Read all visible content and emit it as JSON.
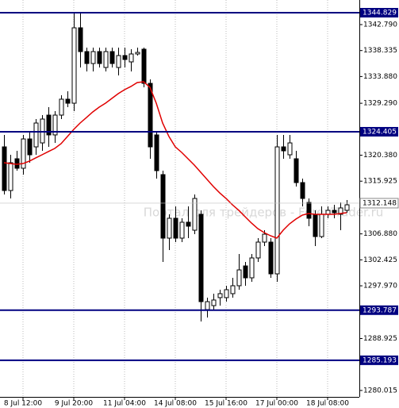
{
  "chart_data": {
    "type": "candlestick",
    "watermark": "Портал для трейдеров - ForexTrader.ru",
    "categories": [
      null,
      null,
      null,
      "8 Jul 12:00",
      null,
      null,
      null,
      null,
      null,
      null,
      null,
      "9 Jul 20:00",
      null,
      null,
      null,
      null,
      null,
      null,
      null,
      "11 Jul 04:00",
      null,
      null,
      null,
      null,
      null,
      null,
      null,
      "14 Jul 08:00",
      null,
      null,
      null,
      null,
      null,
      null,
      null,
      "15 Jul 16:00",
      null,
      null,
      null,
      null,
      null,
      null,
      null,
      "17 Jul 00:00",
      null,
      null,
      null,
      null,
      null,
      null,
      null,
      "18 Jul 08:00",
      null,
      null,
      null
    ],
    "open": [
      1321.81,
      1314.32,
      1319.77,
      1318.14,
      1323.17,
      1321.81,
      1322.49,
      1327.26,
      1323.86,
      1327.26,
      1329.99,
      1329.3,
      1342.24,
      1338.16,
      1336.11,
      1338.16,
      1335.43,
      1338.16,
      1335.43,
      1337.48,
      1336.39,
      1337.75,
      1338.57,
      1332.71,
      1323.86,
      1317.05,
      1306.15,
      1309.56,
      1306.15,
      1308.88,
      1307.51,
      1310.24,
      1293.89,
      1294.57,
      1295.94,
      1295.94,
      1296.62,
      1297.98,
      1301.38,
      1299.34,
      1302.75,
      1305.47,
      1305.47,
      1300.02,
      1321.81,
      1320.45,
      1319.77,
      1315.68,
      1312.28,
      1310.24,
      1306.42,
      1310.24,
      1310.92,
      1310.24,
      1310.92
    ],
    "high": [
      1323.86,
      1320.45,
      1321.13,
      1323.86,
      1324.54,
      1326.58,
      1327.26,
      1328.62,
      1327.94,
      1330.67,
      1331.35,
      1344.97,
      1344.97,
      1338.84,
      1338.84,
      1338.84,
      1338.84,
      1338.84,
      1338.84,
      1338.84,
      1338.57,
      1338.84,
      1338.84,
      1333.39,
      1324.54,
      1317.73,
      1310.24,
      1311.6,
      1309.56,
      1311.6,
      1313.64,
      1310.92,
      1295.94,
      1296.62,
      1297.3,
      1297.98,
      1299.34,
      1303.43,
      1302.06,
      1303.43,
      1306.15,
      1307.51,
      1306.15,
      1323.86,
      1323.86,
      1323.86,
      1321.13,
      1316.37,
      1312.96,
      1310.92,
      1311.6,
      1311.6,
      1311.87,
      1312.28,
      1312.69
    ],
    "low": [
      1313.64,
      1312.96,
      1317.73,
      1317.05,
      1319.09,
      1320.45,
      1321.13,
      1321.81,
      1322.49,
      1326.58,
      1328.62,
      1327.94,
      1335.43,
      1334.75,
      1334.75,
      1335.43,
      1334.75,
      1335.43,
      1334.07,
      1335.43,
      1334.75,
      1337.48,
      1332.03,
      1319.77,
      1316.37,
      1302.06,
      1304.11,
      1305.47,
      1305.47,
      1306.15,
      1306.83,
      1291.85,
      1292.53,
      1293.89,
      1294.57,
      1295.25,
      1295.94,
      1297.3,
      1297.98,
      1298.66,
      1302.06,
      1304.79,
      1299.34,
      1298.66,
      1319.77,
      1319.77,
      1315.0,
      1311.6,
      1308.2,
      1304.79,
      1306.15,
      1309.56,
      1309.56,
      1307.51,
      1310.51
    ],
    "close": [
      1314.32,
      1319.09,
      1318.14,
      1323.17,
      1320.45,
      1325.9,
      1326.58,
      1323.86,
      1327.26,
      1329.99,
      1329.3,
      1342.24,
      1338.16,
      1336.11,
      1338.16,
      1336.11,
      1338.16,
      1336.11,
      1337.48,
      1336.8,
      1337.75,
      1338.02,
      1332.71,
      1321.81,
      1317.73,
      1306.15,
      1309.56,
      1306.15,
      1308.88,
      1308.2,
      1312.96,
      1295.25,
      1295.25,
      1295.53,
      1296.62,
      1297.3,
      1297.98,
      1300.7,
      1299.34,
      1302.75,
      1305.47,
      1306.83,
      1300.02,
      1321.81,
      1321.13,
      1322.49,
      1315.68,
      1312.96,
      1309.56,
      1306.42,
      1310.24,
      1310.92,
      1310.51,
      1311.33,
      1311.87
    ],
    "moving_average": {
      "color": "#e00000",
      "values": [
        1319.09,
        1318.95,
        1318.82,
        1318.95,
        1319.36,
        1319.91,
        1320.45,
        1321.0,
        1321.54,
        1322.36,
        1323.58,
        1324.81,
        1325.9,
        1326.85,
        1327.81,
        1328.62,
        1329.3,
        1330.12,
        1330.94,
        1331.62,
        1332.17,
        1332.85,
        1332.98,
        1332.03,
        1329.3,
        1325.9,
        1323.58,
        1321.81,
        1320.86,
        1319.77,
        1318.68,
        1317.45,
        1316.23,
        1315.0,
        1313.91,
        1312.96,
        1311.87,
        1310.92,
        1309.83,
        1308.74,
        1307.78,
        1307.1,
        1306.56,
        1306.15,
        1307.51,
        1308.6,
        1309.42,
        1310.09,
        1310.37,
        1310.24,
        1310.24,
        1310.24,
        1310.24,
        1310.37,
        1310.51
      ]
    },
    "ylim": [
      1278.91,
      1347.01
    ],
    "yticks": [
      {
        "value": 1342.79,
        "label": "1342.790"
      },
      {
        "value": 1338.335,
        "label": "1338.335"
      },
      {
        "value": 1333.88,
        "label": "1333.880"
      },
      {
        "value": 1329.29,
        "label": "1329.290"
      },
      {
        "value": 1320.38,
        "label": "1320.380"
      },
      {
        "value": 1315.925,
        "label": "1315.925"
      },
      {
        "value": 1306.88,
        "label": "1306.880"
      },
      {
        "value": 1302.425,
        "label": "1302.425"
      },
      {
        "value": 1297.97,
        "label": "1297.970"
      },
      {
        "value": 1288.925,
        "label": "1288.925"
      },
      {
        "value": 1280.015,
        "label": "1280.015"
      }
    ],
    "levels": [
      {
        "value": 1344.829,
        "label": "1344.829"
      },
      {
        "value": 1324.405,
        "label": "1324.405"
      },
      {
        "value": 1293.787,
        "label": "1293.787"
      },
      {
        "value": 1285.193,
        "label": "1285.193"
      }
    ],
    "level_color": "#000080",
    "current_price": {
      "value": 1312.148,
      "label": "1312.148"
    },
    "up_color": "#ffffff",
    "down_color": "#000000",
    "grid": true
  }
}
